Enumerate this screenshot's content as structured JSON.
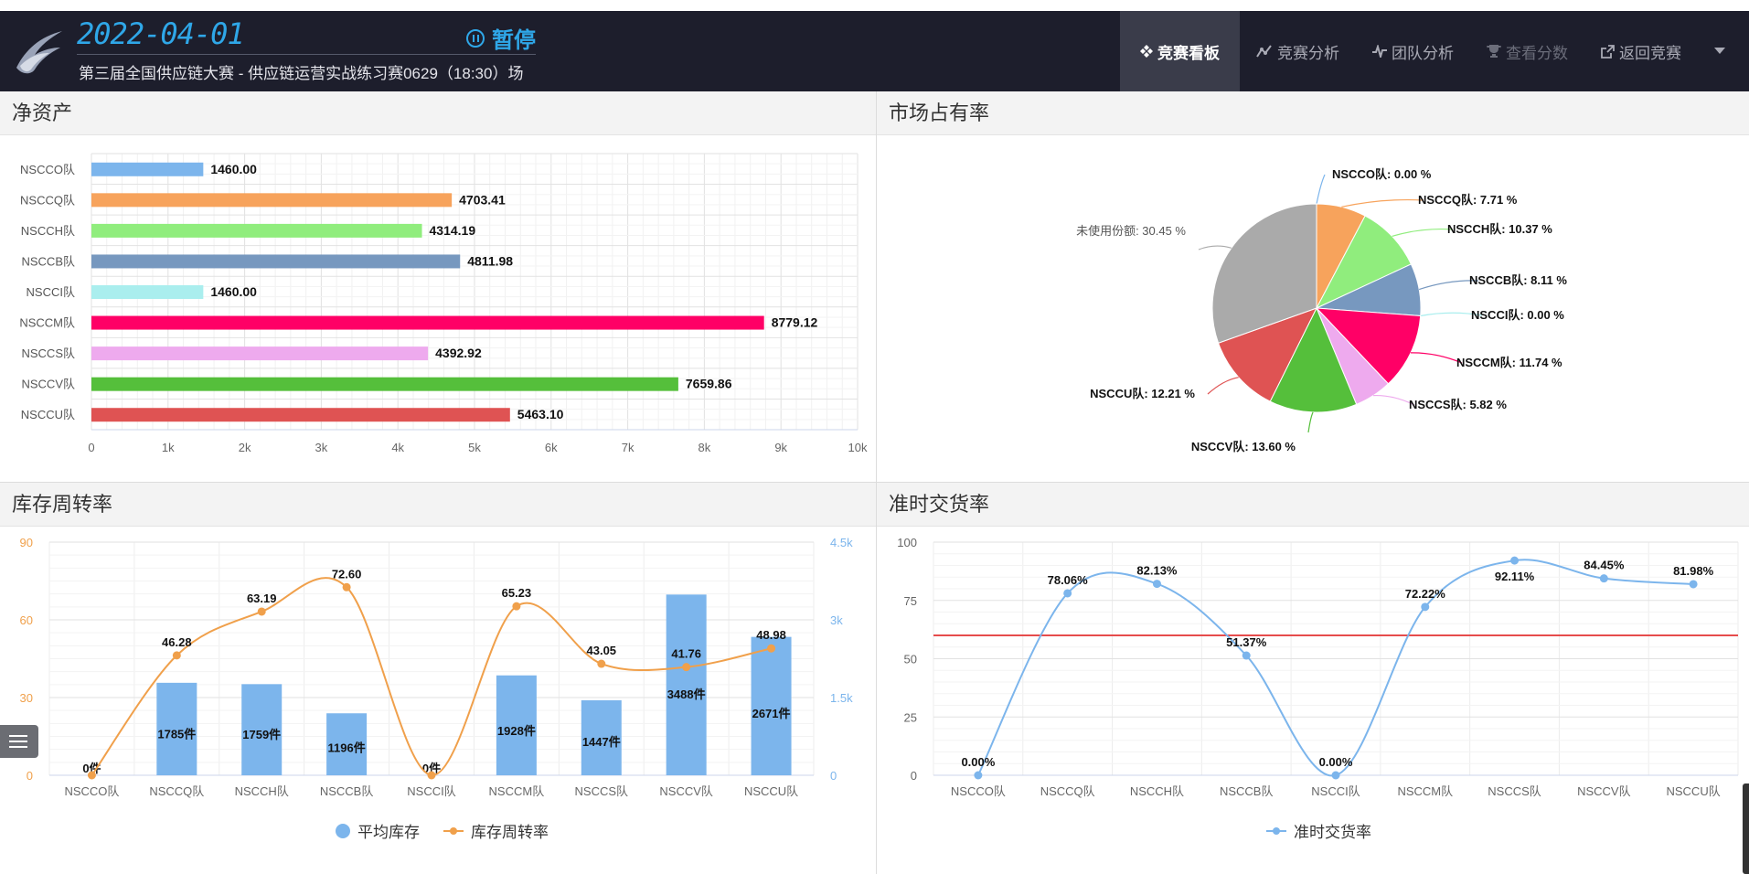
{
  "header": {
    "date": "2022-04-01",
    "pause_label": "暂停",
    "subtitle": "第三届全国供应链大赛 - 供应链运营实战练习赛0629（18:30）场",
    "nav": [
      {
        "label": "竞赛看板",
        "icon": "dashboard-icon",
        "state": "active"
      },
      {
        "label": "竞赛分析",
        "icon": "line-chart-icon",
        "state": "normal"
      },
      {
        "label": "团队分析",
        "icon": "pulse-icon",
        "state": "normal"
      },
      {
        "label": "查看分数",
        "icon": "trophy-icon",
        "state": "disabled"
      },
      {
        "label": "返回竞赛",
        "icon": "external-link-icon",
        "state": "normal"
      }
    ]
  },
  "panels": {
    "net_assets": {
      "title": "净资产"
    },
    "market_share": {
      "title": "市场占有率"
    },
    "inventory_turnover": {
      "title": "库存周转率"
    },
    "on_time_delivery": {
      "title": "准时交货率"
    }
  },
  "colors": {
    "NSCCO": "#7cb5ec",
    "NSCCQ": "#f7a35c",
    "NSCCH": "#90ed7d",
    "NSCCB": "#7798bf",
    "NSCCI": "#aaeeee",
    "NSCCM": "#ff0066",
    "NSCCS": "#eeaaee",
    "NSCCV": "#55bf3b",
    "NSCCU": "#df5353",
    "unused": "#aaaaaa",
    "bar_blue": "#7cb5ec",
    "line_orange": "#f0a04b",
    "target_red": "#e64c4c"
  },
  "chart_data": [
    {
      "id": "net_assets",
      "type": "bar",
      "orientation": "horizontal",
      "categories": [
        "NSCCO队",
        "NSCCQ队",
        "NSCCH队",
        "NSCCB队",
        "NSCCI队",
        "NSCCM队",
        "NSCCS队",
        "NSCCV队",
        "NSCCU队"
      ],
      "values": [
        1460.0,
        4703.41,
        4314.19,
        4811.98,
        1460.0,
        8779.12,
        4392.92,
        7659.86,
        5463.1
      ],
      "value_labels": [
        "1460.00",
        "4703.41",
        "4314.19",
        "4811.98",
        "1460.00",
        "8779.12",
        "4392.92",
        "7659.86",
        "5463.10"
      ],
      "xlim": [
        0,
        10000
      ],
      "xticks": [
        "0",
        "1k",
        "2k",
        "3k",
        "4k",
        "5k",
        "6k",
        "7k",
        "8k",
        "9k",
        "10k"
      ]
    },
    {
      "id": "market_share",
      "type": "pie",
      "slices": [
        {
          "label": "NSCCO队",
          "value": 0.0,
          "text": "NSCCO队: 0.00 %"
        },
        {
          "label": "NSCCQ队",
          "value": 7.71,
          "text": "NSCCQ队: 7.71 %"
        },
        {
          "label": "NSCCH队",
          "value": 10.37,
          "text": "NSCCH队: 10.37 %"
        },
        {
          "label": "NSCCB队",
          "value": 8.11,
          "text": "NSCCB队: 8.11 %"
        },
        {
          "label": "NSCCI队",
          "value": 0.0,
          "text": "NSCCI队: 0.00 %"
        },
        {
          "label": "NSCCM队",
          "value": 11.74,
          "text": "NSCCM队: 11.74 %"
        },
        {
          "label": "NSCCS队",
          "value": 5.82,
          "text": "NSCCS队: 5.82 %"
        },
        {
          "label": "NSCCV队",
          "value": 13.6,
          "text": "NSCCV队: 13.60 %"
        },
        {
          "label": "NSCCU队",
          "value": 12.21,
          "text": "NSCCU队: 12.21 %"
        },
        {
          "label": "未使用份额",
          "value": 30.45,
          "text": "未使用份额: 30.45 %"
        }
      ]
    },
    {
      "id": "inventory_turnover",
      "type": "bar",
      "categories": [
        "NSCCO队",
        "NSCCQ队",
        "NSCCH队",
        "NSCCB队",
        "NSCCI队",
        "NSCCM队",
        "NSCCS队",
        "NSCCV队",
        "NSCCU队"
      ],
      "series": [
        {
          "name": "平均库存",
          "type": "bar",
          "axis": "right",
          "values": [
            0,
            1785,
            1759,
            1196,
            0,
            1928,
            1447,
            3488,
            2671
          ],
          "labels": [
            "0件",
            "1785件",
            "1759件",
            "1196件",
            "0件",
            "1928件",
            "1447件",
            "3488件",
            "2671件"
          ]
        },
        {
          "name": "库存周转率",
          "type": "line",
          "axis": "left",
          "values": [
            0,
            46.28,
            63.19,
            72.6,
            0,
            65.23,
            43.05,
            41.76,
            48.98
          ],
          "labels": [
            "",
            "46.28",
            "63.19",
            "72.60",
            "",
            "65.23",
            "43.05",
            "41.76",
            "48.98"
          ]
        }
      ],
      "ylim_left": [
        0,
        90
      ],
      "yticks_left": [
        "0",
        "30",
        "60",
        "90"
      ],
      "ylim_right": [
        0,
        4500
      ],
      "yticks_right": [
        "0",
        "1.5k",
        "3k",
        "4.5k"
      ]
    },
    {
      "id": "on_time_delivery",
      "type": "line",
      "categories": [
        "NSCCO队",
        "NSCCQ队",
        "NSCCH队",
        "NSCCB队",
        "NSCCI队",
        "NSCCM队",
        "NSCCS队",
        "NSCCV队",
        "NSCCU队"
      ],
      "series": [
        {
          "name": "准时交货率",
          "values": [
            0.0,
            78.06,
            82.13,
            51.37,
            0.0,
            72.22,
            92.11,
            84.45,
            81.98
          ],
          "labels": [
            "0.00%",
            "78.06%",
            "82.13%",
            "51.37%",
            "0.00%",
            "72.22%",
            "92.11%",
            "84.45%",
            "81.98%"
          ]
        }
      ],
      "ylim": [
        0,
        100
      ],
      "yticks": [
        "0",
        "25",
        "50",
        "75",
        "100"
      ],
      "target_line": 60
    }
  ]
}
